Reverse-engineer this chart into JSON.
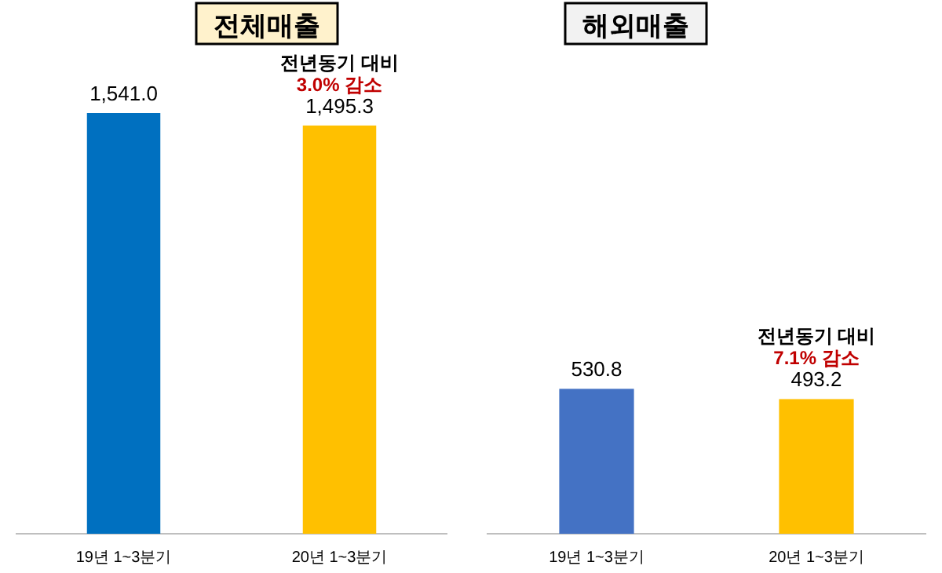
{
  "chart_data": [
    {
      "type": "bar",
      "title": "전체매출",
      "categories": [
        "19년 1~3분기",
        "20년 1~3분기"
      ],
      "colors": [
        "#0070c0",
        "#ffc000"
      ],
      "values": [
        1541.0,
        1495.3
      ],
      "value_labels": [
        "1,541.0",
        "1,495.3"
      ],
      "annotations": [
        "전년동기 대비",
        "3.0% 감소"
      ]
    },
    {
      "type": "bar",
      "title": "해외매출",
      "categories": [
        "19년 1~3분기",
        "20년 1~3분기"
      ],
      "colors": [
        "#4472c4",
        "#ffc000"
      ],
      "values": [
        530.8,
        493.2
      ],
      "value_labels": [
        "530.8",
        "493.2"
      ],
      "annotations": [
        "전년동기 대비",
        "7.1% 감소"
      ]
    }
  ]
}
